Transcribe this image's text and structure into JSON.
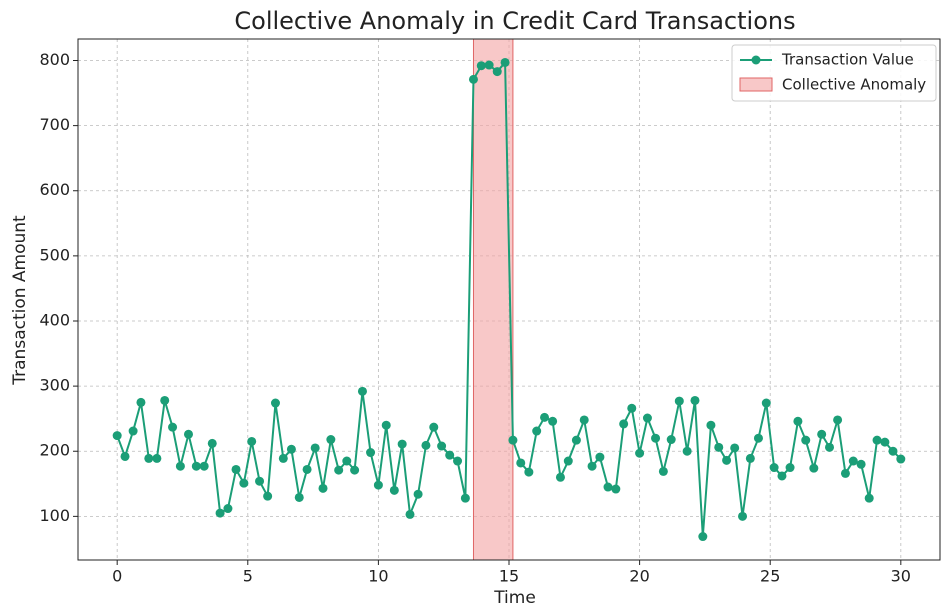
{
  "chart_data": {
    "type": "line",
    "title": "Collective Anomaly in Credit Card Transactions",
    "xlabel": "Time",
    "ylabel": "Transaction Amount",
    "x": [
      0,
      0.3,
      0.61,
      0.91,
      1.21,
      1.52,
      1.82,
      2.12,
      2.42,
      2.73,
      3.03,
      3.33,
      3.64,
      3.94,
      4.24,
      4.55,
      4.85,
      5.15,
      5.45,
      5.76,
      6.06,
      6.36,
      6.67,
      6.97,
      7.27,
      7.58,
      7.88,
      8.18,
      8.48,
      8.79,
      9.09,
      9.39,
      9.7,
      10,
      10.3,
      10.61,
      10.91,
      11.21,
      11.52,
      11.82,
      12.12,
      12.42,
      12.73,
      13.03,
      13.33,
      13.64,
      13.94,
      14.24,
      14.55,
      14.85,
      15.15,
      15.45,
      15.76,
      16.06,
      16.36,
      16.67,
      16.97,
      17.27,
      17.58,
      17.88,
      18.18,
      18.48,
      18.79,
      19.09,
      19.39,
      19.7,
      20,
      20.3,
      20.61,
      20.91,
      21.21,
      21.52,
      21.82,
      22.12,
      22.42,
      22.73,
      23.03,
      23.33,
      23.64,
      23.94,
      24.24,
      24.55,
      24.85,
      25.15,
      25.45,
      25.76,
      26.06,
      26.36,
      26.67,
      26.97,
      27.27,
      27.58,
      27.88,
      28.18,
      28.48,
      28.79,
      29.09,
      29.39,
      29.7,
      30
    ],
    "series": [
      {
        "name": "Transaction Value",
        "color": "#1b9e77",
        "values": [
          224,
          192,
          231,
          275,
          189,
          189,
          278,
          237,
          177,
          226,
          177,
          177,
          212,
          105,
          112,
          172,
          151,
          215,
          154,
          131,
          274,
          189,
          203,
          129,
          172,
          205,
          143,
          218,
          171,
          185,
          171,
          292,
          198,
          148,
          240,
          140,
          211,
          103,
          134,
          209,
          237,
          208,
          194,
          185,
          128,
          771,
          792,
          793,
          783,
          797,
          217,
          182,
          168,
          231,
          252,
          246,
          160,
          185,
          217,
          248,
          177,
          191,
          145,
          142,
          242,
          266,
          197,
          251,
          220,
          169,
          218,
          277,
          200,
          278,
          69,
          240,
          206,
          186,
          205,
          100,
          189,
          220,
          274,
          175,
          162,
          175,
          246,
          217,
          174,
          226,
          206,
          248,
          166,
          185,
          180,
          128,
          217,
          214,
          200,
          188
        ]
      }
    ],
    "span": {
      "name": "Collective Anomaly",
      "x": [
        13.64,
        15.15
      ],
      "color": "#f4a3a3"
    },
    "xlim": [
      -1.5,
      31.5
    ],
    "ylim": [
      33,
      833
    ],
    "xticks": [
      0,
      5,
      10,
      15,
      20,
      25,
      30
    ],
    "yticks": [
      100,
      200,
      300,
      400,
      500,
      600,
      700,
      800
    ],
    "grid": true,
    "legend": "upper right"
  }
}
